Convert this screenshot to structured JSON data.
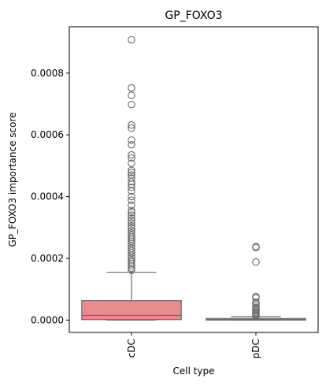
{
  "chart_data": {
    "type": "box",
    "title": "GP_FOXO3",
    "xlabel": "Cell type",
    "ylabel": "GP_FOXO3 importance score",
    "ylim": [
      -4e-05,
      0.00095
    ],
    "yticks": [
      0.0,
      0.0002,
      0.0004,
      0.0006,
      0.0008
    ],
    "ytick_labels": [
      "0.0000",
      "0.0002",
      "0.0004",
      "0.0006",
      "0.0008"
    ],
    "categories": [
      "cDC",
      "pDC"
    ],
    "grid": false,
    "boxes": [
      {
        "category": "cDC",
        "color": "#e88b8e",
        "q1": 1.5e-06,
        "median": 1.5e-05,
        "q3": 6.3e-05,
        "whisker_low": 0.0,
        "whisker_high": 0.000155,
        "outliers": [
          0.000908,
          0.000752,
          0.000728,
          0.000698,
          0.000632,
          0.000622,
          0.000583,
          0.000568,
          0.000535,
          0.000525,
          0.000508,
          0.000485,
          0.000478,
          0.00047,
          0.00046,
          0.000448,
          0.00044,
          0.00043,
          0.000418,
          0.0004,
          0.000388,
          0.000372,
          0.000355,
          0.000348,
          0.00034,
          0.00033,
          0.000322,
          0.000315,
          0.000305,
          0.000298,
          0.00029,
          0.000282,
          0.000275,
          0.000268,
          0.000262,
          0.000255,
          0.000248,
          0.00024,
          0.000232,
          0.000225,
          0.000218,
          0.00021,
          0.000202,
          0.000195,
          0.000188,
          0.000182,
          0.000175,
          0.000168,
          0.000162
        ]
      },
      {
        "category": "pDC",
        "color": "#8fb3e0",
        "q1": 0.0,
        "median": 2e-06,
        "q3": 5e-06,
        "whisker_low": 0.0,
        "whisker_high": 1.1e-05,
        "outliers": [
          0.000238,
          0.000235,
          0.000188,
          7.6e-05,
          7.2e-05,
          5.8e-05,
          5.2e-05,
          4.5e-05,
          4e-05,
          3.5e-05,
          3e-05,
          2.6e-05,
          2.2e-05,
          1.8e-05,
          1.5e-05,
          1.3e-05
        ]
      }
    ]
  }
}
